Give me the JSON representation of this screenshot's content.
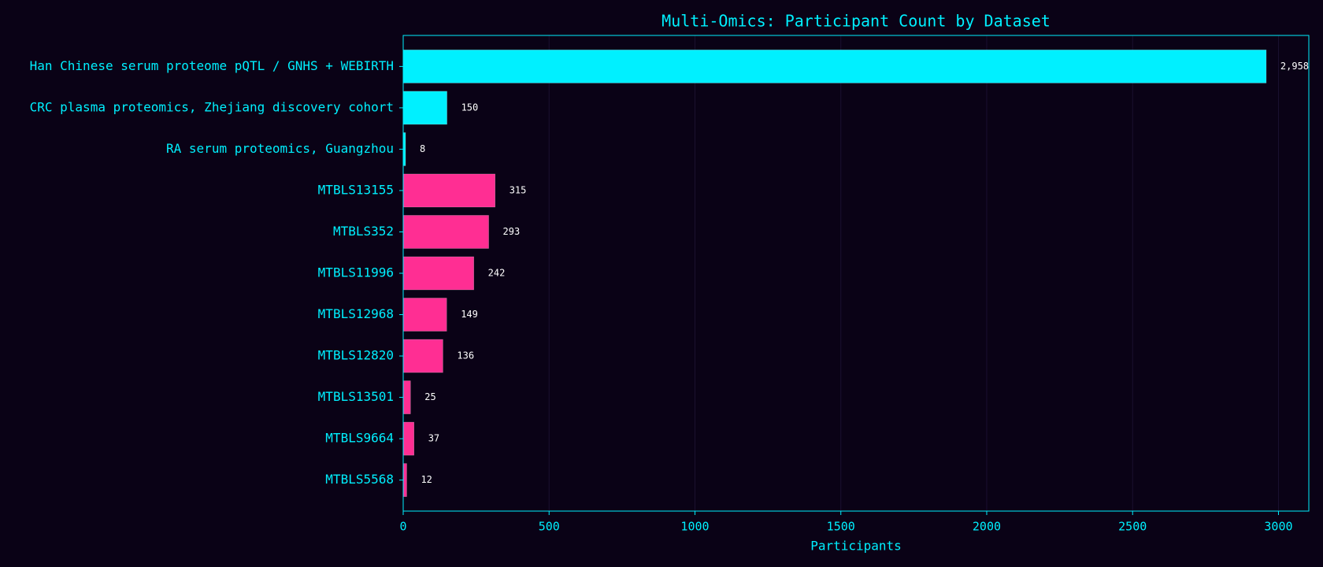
{
  "chart_data": {
    "type": "hbar",
    "title": "Multi-Omics: Participant Count by Dataset",
    "x_label": "Participants",
    "categories": [
      "Han Chinese serum proteome pQTL / GNHS + WEBIRTH",
      "CRC plasma proteomics, Zhejiang discovery cohort",
      "RA serum proteomics, Guangzhou",
      "MTBLS13155",
      "MTBLS352",
      "MTBLS11996",
      "MTBLS12968",
      "MTBLS12820",
      "MTBLS13501",
      "MTBLS9664",
      "MTBLS5568"
    ],
    "values": [
      2958,
      150,
      8,
      315,
      293,
      242,
      149,
      136,
      25,
      37,
      12
    ],
    "value_labels": [
      "2,958",
      "150",
      "8",
      "315",
      "293",
      "242",
      "149",
      "136",
      "25",
      "37",
      "12"
    ],
    "colors": [
      "#00f0ff",
      "#00f0ff",
      "#00f0ff",
      "#ff2e93",
      "#ff2e93",
      "#ff2e93",
      "#ff2e93",
      "#ff2e93",
      "#ff2e93",
      "#ff2e93",
      "#ff2e93"
    ],
    "xlim": [
      0,
      3104
    ],
    "xticks": [
      0,
      500,
      1000,
      1500,
      2000,
      2500,
      3000
    ],
    "grid": true
  }
}
